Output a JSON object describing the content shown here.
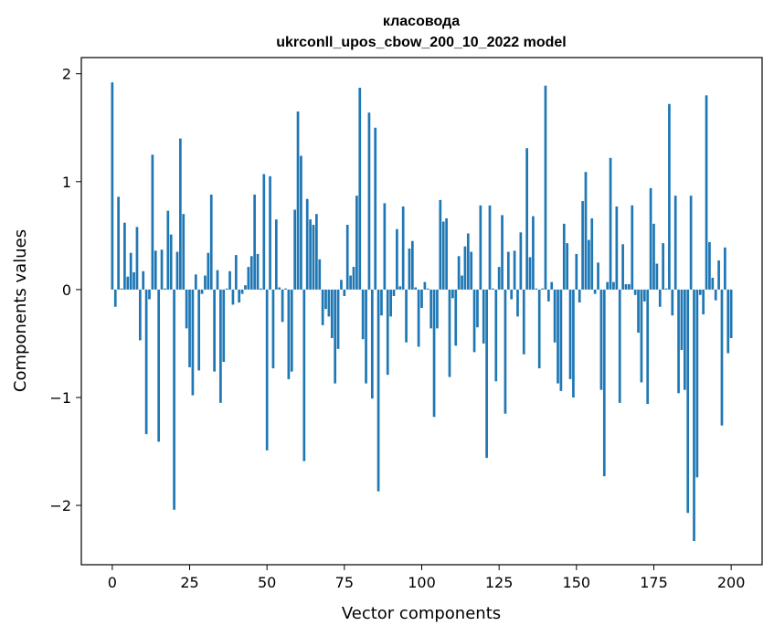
{
  "chart_data": {
    "type": "bar",
    "title": "класовода",
    "subtitle": "ukrconll_upos_cbow_200_10_2022 model",
    "xlabel": "Vector components",
    "ylabel": "Components values",
    "xlim": [
      -10,
      210
    ],
    "ylim": [
      -2.55,
      2.15
    ],
    "xticks": [
      0,
      25,
      50,
      75,
      100,
      125,
      150,
      175,
      200
    ],
    "yticks": [
      -2,
      -1,
      0,
      1,
      2
    ],
    "xtick_labels": [
      "0",
      "25",
      "50",
      "75",
      "100",
      "125",
      "150",
      "175",
      "200"
    ],
    "ytick_labels": [
      "−2",
      "−1",
      "0",
      "1",
      "2"
    ],
    "grid": false,
    "bar_color": "#1f77b4",
    "values": [
      1.92,
      -0.16,
      0.86,
      0.01,
      0.62,
      0.12,
      0.34,
      0.16,
      0.58,
      -0.47,
      0.17,
      -1.34,
      -0.09,
      1.25,
      0.36,
      -1.41,
      0.37,
      0.01,
      0.73,
      0.51,
      -2.04,
      0.35,
      1.4,
      0.7,
      -0.36,
      -0.72,
      -0.98,
      0.14,
      -0.75,
      -0.04,
      0.13,
      0.34,
      0.88,
      -0.76,
      0.18,
      -1.05,
      -0.67,
      0.01,
      0.17,
      -0.14,
      0.32,
      -0.12,
      -0.04,
      0.04,
      0.21,
      0.31,
      0.88,
      0.33,
      0.01,
      1.07,
      -1.49,
      1.05,
      -0.73,
      0.65,
      0.02,
      -0.3,
      0.01,
      -0.83,
      -0.76,
      0.74,
      1.65,
      1.24,
      -1.59,
      0.84,
      0.65,
      0.6,
      0.7,
      0.28,
      -0.33,
      -0.18,
      -0.25,
      -0.45,
      -0.87,
      -0.55,
      0.09,
      -0.06,
      0.6,
      0.13,
      0.21,
      0.87,
      1.87,
      -0.46,
      -0.87,
      1.64,
      -1.01,
      1.5,
      -1.87,
      -0.24,
      0.8,
      -0.79,
      -0.25,
      -0.06,
      0.56,
      0.03,
      0.77,
      -0.49,
      0.38,
      0.45,
      0.02,
      -0.53,
      -0.17,
      0.07,
      0.01,
      -0.36,
      -1.18,
      -0.36,
      0.83,
      0.63,
      0.66,
      -0.81,
      -0.08,
      -0.52,
      0.31,
      0.13,
      0.4,
      0.52,
      0.35,
      -0.58,
      -0.35,
      0.78,
      -0.5,
      -1.56,
      0.78,
      0.01,
      -0.85,
      0.21,
      0.69,
      -1.15,
      0.35,
      -0.09,
      0.36,
      -0.25,
      0.53,
      -0.6,
      1.31,
      0.3,
      0.68,
      0.01,
      -0.73,
      0.01,
      1.89,
      -0.11,
      0.07,
      -0.49,
      -0.87,
      -0.94,
      0.61,
      0.43,
      -0.83,
      -1.0,
      0.33,
      -0.12,
      0.82,
      1.09,
      0.46,
      0.66,
      -0.04,
      0.25,
      -0.93,
      -1.73,
      0.07,
      1.22,
      0.07,
      0.77,
      -1.05,
      0.42,
      0.05,
      0.05,
      0.78,
      -0.05,
      -0.4,
      -0.86,
      -0.11,
      -1.06,
      0.94,
      0.61,
      0.24,
      -0.16,
      0.43,
      0.01,
      1.72,
      -0.24,
      0.87,
      -0.96,
      -0.56,
      -0.93,
      -2.07,
      0.87,
      -2.33,
      -1.74,
      -0.05,
      -0.23,
      1.8,
      0.44,
      0.11,
      -0.1,
      0.27,
      -1.26,
      0.39,
      -0.59,
      -0.45
    ]
  }
}
